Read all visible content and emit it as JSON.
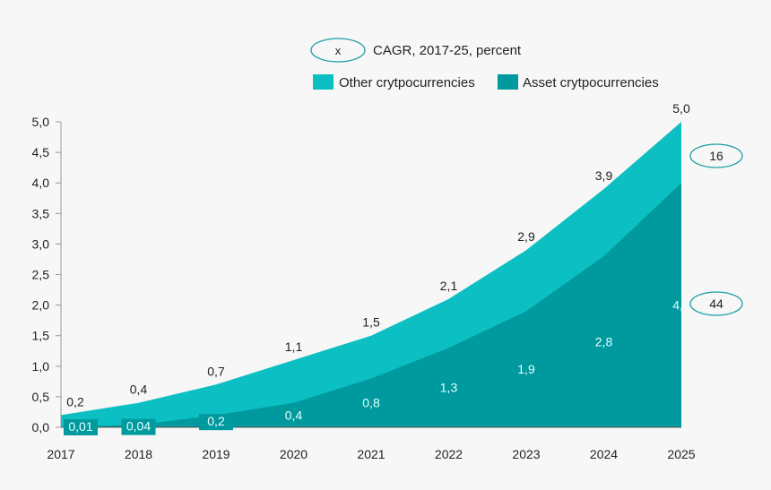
{
  "chart_data": {
    "type": "area",
    "stacked": true,
    "x": [
      "2017",
      "2018",
      "2019",
      "2020",
      "2021",
      "2022",
      "2023",
      "2024",
      "2025"
    ],
    "series": [
      {
        "name": "Asset crytpocurrencies",
        "values": [
          0.01,
          0.04,
          0.2,
          0.4,
          0.8,
          1.3,
          1.9,
          2.8,
          4.0
        ],
        "labels": [
          "0,01",
          "0,04",
          "0,2",
          "0,4",
          "0,8",
          "1,3",
          "1,9",
          "2,8",
          "4,0"
        ],
        "color": "#009a9e",
        "cagr": "44"
      },
      {
        "name": "Other crytpocurrencies",
        "totals": [
          0.2,
          0.4,
          0.7,
          1.1,
          1.5,
          2.1,
          2.9,
          3.9,
          5.0
        ],
        "labels": [
          "0,2",
          "0,4",
          "0,7",
          "1,1",
          "1,5",
          "2,1",
          "2,9",
          "3,9",
          "5,0"
        ],
        "color": "#0bbfc3",
        "cagr": "16"
      }
    ],
    "ylim": [
      0,
      5
    ],
    "yticks": [
      "0,0",
      "0,5",
      "1,0",
      "1,5",
      "2,0",
      "2,5",
      "3,0",
      "3,5",
      "4,0",
      "4,5",
      "5,0"
    ],
    "legend_placement": "top",
    "cagr_legend": {
      "symbol": "x",
      "text": "CAGR, 2017-25, percent"
    },
    "grid": false
  }
}
